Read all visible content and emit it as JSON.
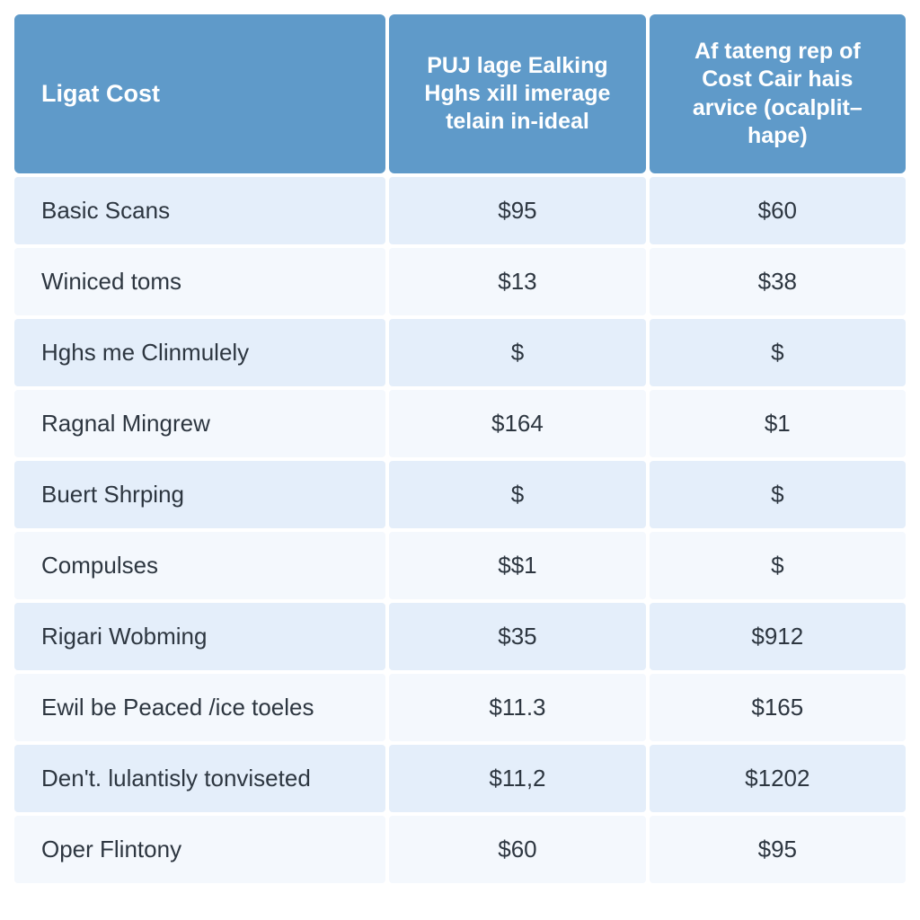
{
  "table": {
    "type": "table",
    "header_bg": "#5f9ac9",
    "header_fg": "#ffffff",
    "row_even_bg": "#e4eefa",
    "row_odd_bg": "#f4f8fd",
    "cell_fg": "#2d3640",
    "header_fontsize": 25,
    "cell_fontsize": 26,
    "col_widths_pct": [
      42,
      29,
      29
    ],
    "col_align": [
      "left",
      "center",
      "center"
    ],
    "columns": [
      "Ligat Cost",
      "PUJ lage Ealking Hghs xill imerage telain in-ideal",
      "Af tateng rep of Cost Cair hais arvice (ocalplit–hape)"
    ],
    "rows": [
      [
        "Basic Scans",
        "$95",
        "$60"
      ],
      [
        "Winiced toms",
        "$13",
        "$38"
      ],
      [
        "Hghs me Clinmulely",
        "$",
        "$"
      ],
      [
        "Ragnal Mingrew",
        "$164",
        "$1"
      ],
      [
        "Buert Shrping",
        "$",
        "$"
      ],
      [
        "Compulses",
        "$$1",
        "$"
      ],
      [
        "Rigari Wobming",
        "$35",
        "$912"
      ],
      [
        "Ewil be Peaced /ice toeles",
        "$11.3",
        "$165"
      ],
      [
        "Den't. lulantisly tonviseted",
        "$11,2",
        "$1202"
      ],
      [
        "Oper Flintony",
        "$60",
        "$95"
      ]
    ]
  }
}
